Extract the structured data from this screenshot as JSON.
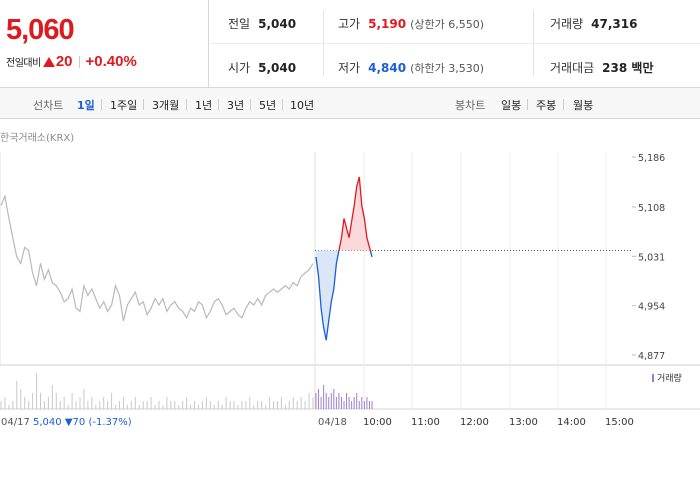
{
  "quote": {
    "price": "5,060",
    "change_label": "전일대비",
    "change_value": "20",
    "change_pct": "+0.40%",
    "stats": {
      "prev_close": {
        "label": "전일",
        "value": "5,040"
      },
      "high": {
        "label": "고가",
        "value": "5,190",
        "sub": "(상한가 6,550)"
      },
      "volume": {
        "label": "거래량",
        "value": "47,316"
      },
      "open": {
        "label": "시가",
        "value": "5,040"
      },
      "low": {
        "label": "저가",
        "value": "4,840",
        "sub": "(하한가 3,530)"
      },
      "amount": {
        "label": "거래대금",
        "value": "238 백만"
      }
    }
  },
  "toolbar": {
    "line_label": "선차트",
    "line_options": [
      "1일",
      "1주일",
      "3개월",
      "1년",
      "3년",
      "5년",
      "10년"
    ],
    "line_active": "1일",
    "candle_label": "봉차트",
    "candle_options": [
      "일봉",
      "주봉",
      "월봉"
    ]
  },
  "colors": {
    "up": "#e0191f",
    "down": "#1a5fd6",
    "prev": "#b9b9b9"
  },
  "chart_data": {
    "type": "line",
    "source_label": "한국거래소(KRX)",
    "ylim": [
      4877,
      5186
    ],
    "y_ticks": [
      "5,186",
      "5,108",
      "5,031",
      "4,954",
      "4,877"
    ],
    "reference_price": 5040,
    "x_tick_labels": [
      "10:00",
      "11:00",
      "12:00",
      "13:00",
      "14:00",
      "15:00"
    ],
    "prev_day_label": "04/17",
    "prev_day_summary": {
      "close": "5,040",
      "arrow": "▼",
      "change": "70",
      "pct": "(-1.37%)"
    },
    "current_day_label": "04/18",
    "volume_legend": "거래량",
    "series": [
      {
        "values": [
          5110,
          5125,
          5090,
          5060,
          5030,
          5020,
          5045,
          5040,
          5005,
          4985,
          5020,
          4995,
          5010,
          4990,
          4985,
          4975,
          4960,
          4965,
          4980,
          4950,
          4945,
          4985,
          4970,
          4980,
          4965,
          4950,
          4960,
          4945,
          4955,
          4985,
          4970,
          4930,
          4955,
          4965,
          4975,
          4955,
          4960,
          4940,
          4950,
          4965,
          4955,
          4965,
          4945,
          4955,
          4960,
          4950,
          4945,
          4935,
          4950,
          4945,
          4960,
          4955,
          4935,
          4945,
          4960,
          4965,
          4955,
          4940,
          4945,
          4950,
          4940,
          4935,
          4950,
          4960,
          4955,
          4965,
          4955,
          4970,
          4975,
          4980,
          4975,
          4980,
          4985,
          4980,
          4990,
          4985,
          5000,
          5005,
          5010,
          5020
        ]
      },
      {
        "values": [
          5030,
          5000,
          4950,
          4920,
          4900,
          4930,
          4960,
          4980,
          5020,
          5040,
          5060,
          5090,
          5075,
          5060,
          5085,
          5110,
          5140,
          5155,
          5110,
          5090,
          5060,
          5045,
          5030
        ]
      }
    ],
    "volume": {
      "prev_day": [
        2,
        3,
        1,
        2,
        7,
        5,
        3,
        2,
        4,
        9,
        4,
        2,
        3,
        6,
        4,
        2,
        3,
        1,
        4,
        2,
        3,
        5,
        2,
        3,
        1,
        2,
        3,
        2,
        4,
        1,
        2,
        3,
        1,
        2,
        3,
        1,
        2,
        2,
        3,
        1,
        2,
        1,
        3,
        2,
        2,
        1,
        2,
        3,
        1,
        2,
        1,
        2,
        3,
        2,
        1,
        2,
        1,
        3,
        2,
        2,
        1,
        2,
        2,
        3,
        1,
        2,
        2,
        1,
        3,
        2,
        2,
        3,
        1,
        2,
        3,
        2,
        3,
        2,
        4,
        3
      ],
      "current_day": [
        4,
        5,
        3,
        6,
        4,
        3,
        4,
        5,
        3,
        4,
        3,
        2,
        4,
        3,
        2,
        3,
        4,
        2,
        3,
        2,
        3,
        2,
        2
      ]
    }
  }
}
